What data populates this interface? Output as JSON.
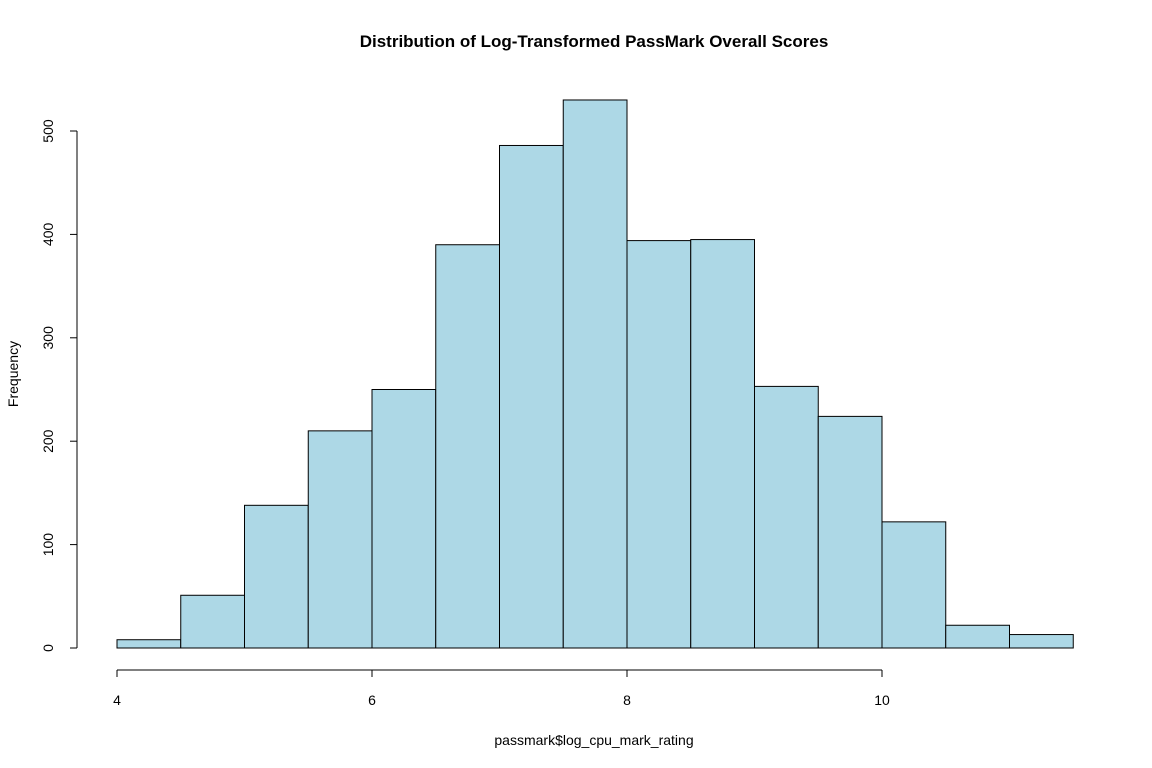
{
  "chart_data": {
    "type": "bar",
    "title": "Distribution of Log-Transformed PassMark Overall Scores",
    "xlabel": "passmark$log_cpu_mark_rating",
    "ylabel": "Frequency",
    "bin_edges": [
      4,
      4.5,
      5,
      5.5,
      6,
      6.5,
      7,
      7.5,
      8,
      8.5,
      9,
      9.5,
      10,
      10.5,
      11,
      11.5
    ],
    "values": [
      8,
      51,
      138,
      210,
      250,
      390,
      486,
      530,
      394,
      395,
      253,
      224,
      122,
      22,
      13
    ],
    "x_ticks": [
      4,
      6,
      8,
      10
    ],
    "y_ticks": [
      0,
      100,
      200,
      300,
      400,
      500
    ],
    "xlim": [
      4,
      11.5
    ],
    "ylim": [
      0,
      530
    ],
    "grid": false,
    "colors": {
      "bar_fill": "#add8e6",
      "bar_stroke": "#000000"
    }
  }
}
